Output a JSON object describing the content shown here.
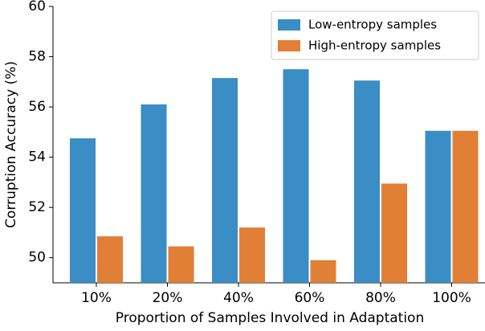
{
  "chart_data": {
    "type": "bar",
    "x_label": "Proportion of Samples Involved in Adaptation",
    "y_label": "Corruption Accuracy (%)",
    "categories": [
      "10%",
      "20%",
      "40%",
      "60%",
      "80%",
      "100%"
    ],
    "series": [
      {
        "name": "Low-entropy samples",
        "color": "#3a8dc5",
        "values": [
          54.75,
          56.1,
          57.15,
          57.5,
          57.05,
          55.05
        ]
      },
      {
        "name": "High-entropy samples",
        "color": "#e07f35",
        "values": [
          50.85,
          50.45,
          51.2,
          49.9,
          52.95,
          55.05
        ]
      }
    ],
    "ylim": [
      49,
      60
    ],
    "yticks": [
      50,
      52,
      54,
      56,
      58,
      60
    ],
    "legend": "upper right"
  }
}
